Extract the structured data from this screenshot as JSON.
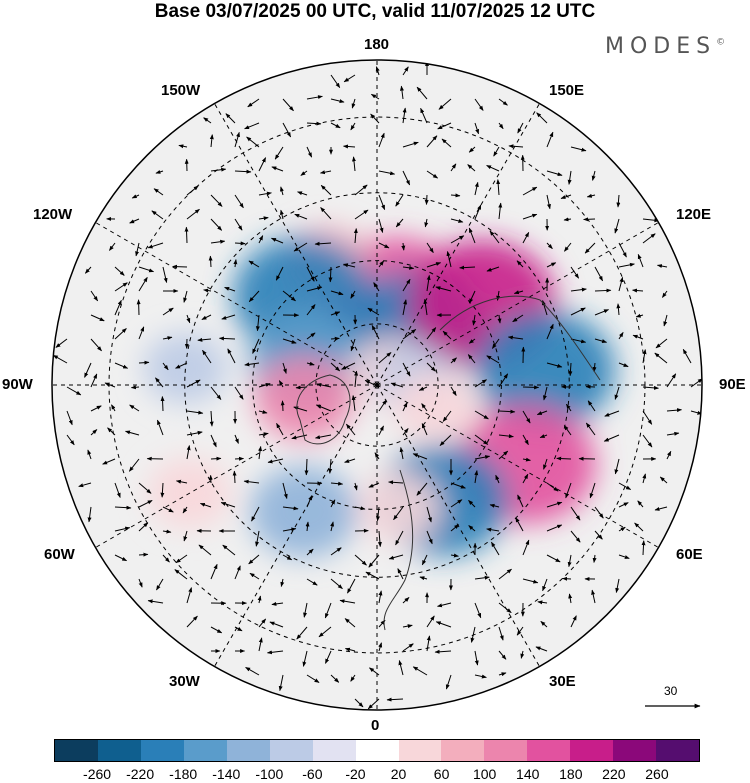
{
  "title": "Base 03/07/2025 00 UTC, valid 11/07/2025 12 UTC",
  "logo": {
    "text": "MODES",
    "mark": "©"
  },
  "longitude_labels": {
    "n180": "180",
    "e150": "150E",
    "e120": "120E",
    "e90": "90E",
    "e60": "60E",
    "e30": "30E",
    "s0": "0",
    "w30": "30W",
    "w60": "60W",
    "w90": "90W",
    "w120": "120W",
    "w150": "150W"
  },
  "reference_vector": {
    "value": "30"
  },
  "colorbar": {
    "ticks": [
      "-260",
      "-220",
      "-180",
      "-140",
      "-100",
      "-60",
      "-20",
      "20",
      "60",
      "100",
      "140",
      "180",
      "220",
      "260"
    ],
    "colors": [
      "#0c3d5e",
      "#0f5f8f",
      "#2a7fb8",
      "#5a9ccb",
      "#8fb3d9",
      "#bccbe6",
      "#e2e2f2",
      "#ffffff",
      "#f8d7da",
      "#f3aebd",
      "#ec85ad",
      "#e2529f",
      "#c81e8a",
      "#8b087a",
      "#550d6f"
    ]
  },
  "anomalies": [
    {
      "lon": 168,
      "lat": 68,
      "value": 200,
      "color": "#e2529f"
    },
    {
      "lon": 145,
      "lat": 72,
      "value": -180,
      "color": "#2a7fb8"
    },
    {
      "lon": -158,
      "lat": 58,
      "value": 60,
      "color": "#f3aebd"
    },
    {
      "lon": -140,
      "lat": 62,
      "value": -200,
      "color": "#2a7fb8"
    },
    {
      "lon": 128,
      "lat": 58,
      "value": 220,
      "color": "#c81e8a"
    },
    {
      "lon": 95,
      "lat": 50,
      "value": -200,
      "color": "#2a7fb8"
    },
    {
      "lon": 62,
      "lat": 50,
      "value": 200,
      "color": "#e2529f"
    },
    {
      "lon": 30,
      "lat": 58,
      "value": -180,
      "color": "#2a7fb8"
    },
    {
      "lon": -110,
      "lat": 72,
      "value": -140,
      "color": "#5a9ccb"
    },
    {
      "lon": -80,
      "lat": 72,
      "value": 100,
      "color": "#ec85ad"
    },
    {
      "lon": -30,
      "lat": 55,
      "value": -120,
      "color": "#8fb3d9"
    },
    {
      "lon": 130,
      "lat": 85,
      "value": 60,
      "color": "#f8d7da"
    },
    {
      "lon": 95,
      "lat": 80,
      "value": -60,
      "color": "#bccbe6"
    },
    {
      "lon": -95,
      "lat": 45,
      "value": -60,
      "color": "#bccbe6"
    },
    {
      "lon": -60,
      "lat": 40,
      "value": 60,
      "color": "#f8d7da"
    },
    {
      "lon": 10,
      "lat": 60,
      "value": 60,
      "color": "#f8d7da"
    },
    {
      "lon": 70,
      "lat": 75,
      "value": 60,
      "color": "#f8d7da"
    }
  ]
}
